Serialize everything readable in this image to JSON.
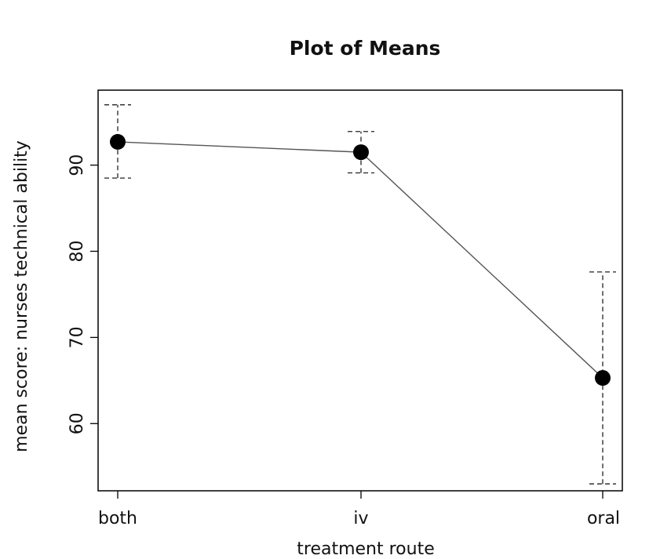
{
  "chart_data": {
    "type": "line",
    "title": "Plot of Means",
    "xlabel": "treatment route",
    "ylabel": "mean score: nurses technical ability",
    "categories": [
      "both",
      "iv",
      "oral"
    ],
    "ylim": [
      52.2,
      98.7
    ],
    "yticks": [
      60,
      70,
      80,
      90
    ],
    "grid": false,
    "series": [
      {
        "values": [
          92.7,
          91.5,
          65.3
        ],
        "error_lower": [
          88.5,
          89.1,
          53.0
        ],
        "error_upper": [
          97.0,
          93.9,
          77.6
        ]
      }
    ],
    "colors": {
      "line": "#555555",
      "marker": "#000000",
      "errorbar": "#222222",
      "axis": "#000000"
    }
  }
}
